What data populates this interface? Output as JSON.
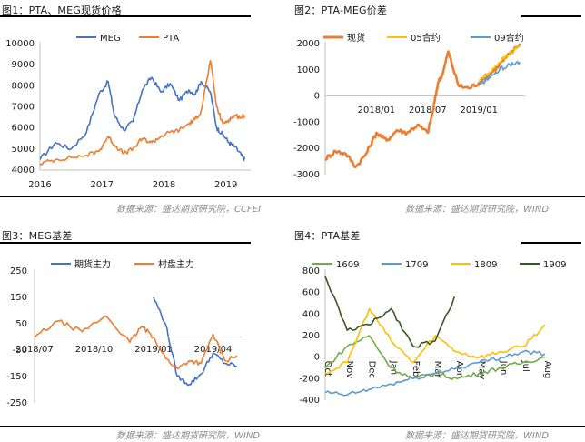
{
  "panels": [
    {
      "title": "图1：PTA、MEG现货价格",
      "source": "数据来源：盛达期货研究院，CCFEI"
    },
    {
      "title": "图2：PTA-MEG价差",
      "source": "数据来源：盛达期货研究院，WIND"
    },
    {
      "title": "图3：MEG基差",
      "source": "数据来源：盛达期货研究院，WIND"
    },
    {
      "title": "图4：PTA基差",
      "source": "数据来源：盛达期货研究院，WIND"
    }
  ],
  "colors": {
    "blue": "#4472c4",
    "orange": "#ed7d31",
    "yellow": "#ffc000",
    "lightblue": "#5b9bd5",
    "green": "#70ad47",
    "darkgreen": "#385723"
  },
  "chart_data": [
    {
      "type": "line",
      "title": "图1：PTA、MEG现货价格",
      "x": [
        2016.0,
        2016.25,
        2016.5,
        2016.75,
        2016.95,
        2017.1,
        2017.2,
        2017.35,
        2017.5,
        2017.65,
        2017.8,
        2017.95,
        2018.1,
        2018.25,
        2018.4,
        2018.5,
        2018.6,
        2018.75,
        2018.85,
        2018.95,
        2019.05,
        2019.15,
        2019.25,
        2019.3
      ],
      "xticks": [
        "2016",
        "2017",
        "2018",
        "2019"
      ],
      "xtick_values": [
        2016,
        2017,
        2018,
        2019
      ],
      "xlim": [
        2016.0,
        2019.4
      ],
      "ylim": [
        4000,
        10000
      ],
      "yticks": [
        4000,
        5000,
        6000,
        7000,
        8000,
        9000,
        10000
      ],
      "legend": "top-center",
      "series": [
        {
          "name": "MEG",
          "color": "#4472c4",
          "values": [
            4500,
            5300,
            5000,
            5800,
            7600,
            8200,
            6600,
            5900,
            6300,
            7800,
            8400,
            7700,
            8100,
            7300,
            7800,
            7600,
            8200,
            7700,
            6000,
            5700,
            5300,
            5100,
            4700,
            4500
          ]
        },
        {
          "name": "PTA",
          "color": "#ed7d31",
          "values": [
            4300,
            4500,
            4600,
            4700,
            4900,
            5600,
            5200,
            4800,
            5000,
            5500,
            5300,
            5600,
            5800,
            5900,
            6200,
            6400,
            6800,
            9200,
            7000,
            6200,
            6400,
            6600,
            6500,
            6600
          ]
        }
      ]
    },
    {
      "type": "line",
      "title": "图2：PTA-MEG价差",
      "x": [
        2017.5,
        2017.6,
        2017.7,
        2017.8,
        2017.9,
        2018.0,
        2018.1,
        2018.2,
        2018.3,
        2018.4,
        2018.5,
        2018.55,
        2018.6,
        2018.65,
        2018.7,
        2018.8,
        2018.9,
        2019.0,
        2019.1,
        2019.2,
        2019.3,
        2019.4
      ],
      "xticks": [
        "2018/01",
        "2018/07",
        "2019/01"
      ],
      "xtick_values": [
        2018.0,
        2018.5,
        2019.0
      ],
      "xlim": [
        2017.5,
        2019.45
      ],
      "ylim": [
        -3000,
        2000
      ],
      "yticks": [
        -3000,
        -2000,
        -1000,
        0,
        1000,
        2000
      ],
      "legend": "top",
      "series": [
        {
          "name": "现货",
          "color": "#ed7d31",
          "values": [
            -2400,
            -2100,
            -2200,
            -2700,
            -2200,
            -1400,
            -1700,
            -1300,
            -1400,
            -1100,
            -1400,
            -600,
            500,
            900,
            1700,
            400,
            300,
            500,
            800,
            1200,
            1600,
            2000
          ]
        },
        {
          "name": "05合约",
          "color": "#ffc000",
          "values": [
            null,
            null,
            null,
            null,
            null,
            null,
            null,
            null,
            null,
            null,
            null,
            null,
            null,
            null,
            null,
            null,
            null,
            600,
            900,
            1300,
            1600,
            1900
          ]
        },
        {
          "name": "09合约",
          "color": "#5b9bd5",
          "values": [
            null,
            null,
            null,
            null,
            null,
            null,
            null,
            null,
            null,
            null,
            null,
            null,
            null,
            null,
            null,
            null,
            null,
            400,
            700,
            1000,
            1200,
            1300
          ]
        }
      ]
    },
    {
      "type": "line",
      "title": "图3：MEG基差",
      "x": [
        2018.5,
        2018.6,
        2018.7,
        2018.8,
        2018.9,
        2018.95,
        2019.0,
        2019.05,
        2019.1,
        2019.15,
        2019.2,
        2019.25,
        2019.3,
        2019.35
      ],
      "xticks": [
        "2018/07",
        "2018/10",
        "2019/01",
        "2019/04"
      ],
      "xtick_values": [
        2018.5,
        2018.75,
        2019.0,
        2019.25
      ],
      "xlim": [
        2018.5,
        2019.37
      ],
      "ylim": [
        -250,
        250
      ],
      "yticks": [
        -250,
        -150,
        -50,
        50,
        150,
        250
      ],
      "legend": "top",
      "series": [
        {
          "name": "期货主力",
          "color": "#4472c4",
          "values": [
            null,
            null,
            null,
            null,
            null,
            null,
            150,
            50,
            -150,
            -180,
            -140,
            -60,
            -100,
            -110
          ]
        },
        {
          "name": "村盘主力",
          "color": "#ed7d31",
          "values": [
            0,
            60,
            20,
            80,
            -20,
            40,
            0,
            -80,
            -120,
            -90,
            -100,
            10,
            -90,
            -70
          ]
        }
      ]
    },
    {
      "type": "line",
      "title": "图4：PTA基差",
      "x": [
        "Oct",
        "Nov",
        "Dec",
        "Jan",
        "Feb",
        "Mar",
        "Apr",
        "May",
        "Jun",
        "Jul",
        "Aug"
      ],
      "xlim": [
        0,
        10.5
      ],
      "ylim": [
        -400,
        800
      ],
      "yticks": [
        -400,
        -200,
        0,
        200,
        400,
        600,
        800
      ],
      "legend": "top",
      "series": [
        {
          "name": "1609",
          "color": "#70ad47",
          "values": [
            -100,
            100,
            200,
            -100,
            -200,
            -150,
            -200,
            -150,
            -100,
            -50,
            0
          ]
        },
        {
          "name": "1709",
          "color": "#5b9bd5",
          "values": [
            -330,
            -350,
            -300,
            -250,
            -200,
            -150,
            -100,
            -50,
            0,
            50,
            30
          ]
        },
        {
          "name": "1809",
          "color": "#ffc000",
          "values": [
            -150,
            -50,
            450,
            150,
            -50,
            200,
            50,
            0,
            50,
            100,
            300
          ]
        },
        {
          "name": "1909",
          "color": "#385723",
          "values": [
            750,
            250,
            300,
            450,
            100,
            150,
            600,
            null,
            null,
            null,
            null
          ]
        }
      ]
    }
  ]
}
